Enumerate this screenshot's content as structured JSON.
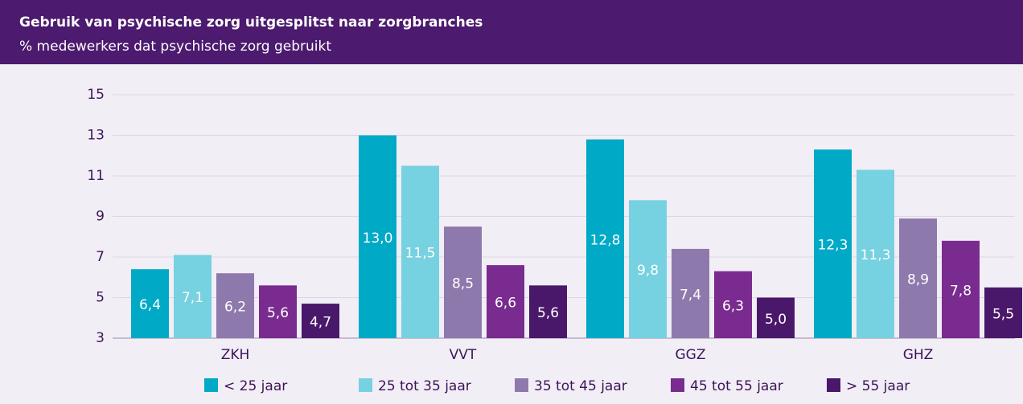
{
  "chart_data": {
    "type": "bar",
    "title": "Gebruik van psychische zorg uitgesplitst naar zorgbranches",
    "subtitle": "% medewerkers dat psychische zorg gebruikt",
    "categories": [
      "ZKH",
      "VVT",
      "GGZ",
      "GHZ"
    ],
    "ylim": [
      3,
      15
    ],
    "yticks": [
      3,
      5,
      7,
      9,
      11,
      13,
      15
    ],
    "series": [
      {
        "name": "< 25 jaar",
        "color": "#00aac6",
        "values": [
          6.4,
          13.0,
          12.8,
          12.3
        ],
        "value_labels": [
          "6,4",
          "13,0",
          "12,8",
          "12,3"
        ]
      },
      {
        "name": "25 tot 35 jaar",
        "color": "#76d1e0",
        "values": [
          7.1,
          11.5,
          9.8,
          11.3
        ],
        "value_labels": [
          "7,1",
          "11,5",
          "9,8",
          "11,3"
        ]
      },
      {
        "name": "35 tot 45 jaar",
        "color": "#8e79ad",
        "values": [
          6.2,
          8.5,
          7.4,
          8.9
        ],
        "value_labels": [
          "6,2",
          "8,5",
          "7,4",
          "8,9"
        ]
      },
      {
        "name": "45 tot 55 jaar",
        "color": "#7a2b8f",
        "values": [
          5.6,
          6.6,
          6.3,
          7.8
        ],
        "value_labels": [
          "5,6",
          "6,6",
          "6,3",
          "7,8"
        ]
      },
      {
        "name": "> 55 jaar",
        "color": "#4a186a",
        "values": [
          4.7,
          5.6,
          5.0,
          5.5
        ],
        "value_labels": [
          "4,7",
          "5,6",
          "5,0",
          "5,5"
        ]
      }
    ]
  }
}
